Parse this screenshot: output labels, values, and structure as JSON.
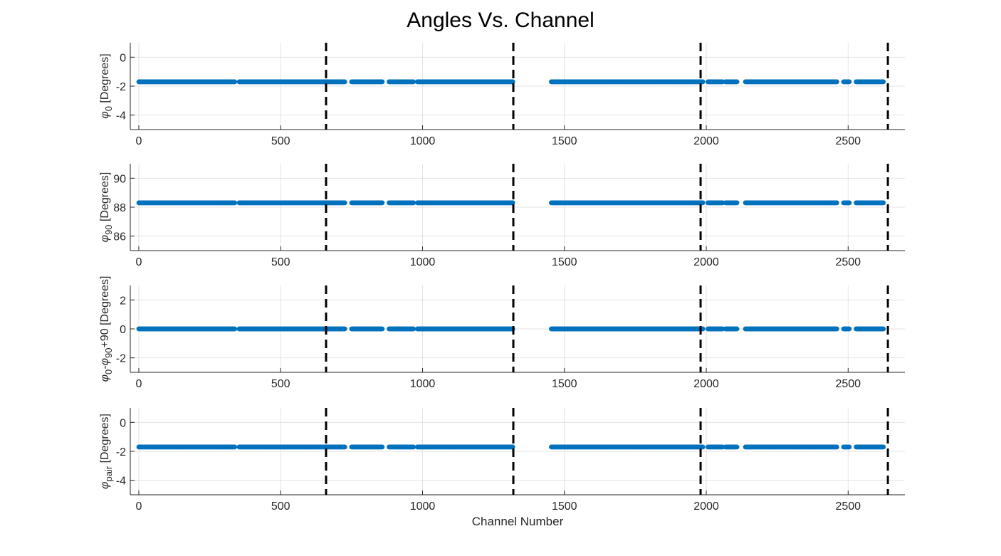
{
  "title": "Angles Vs. Channel",
  "chart_data": {
    "type": "scatter",
    "title": "Angles Vs. Channel",
    "xlabel": "Channel Number",
    "marker_color": "#0072BD",
    "vline_color": "#000000",
    "x_range": [
      0,
      2624
    ],
    "gaps": [
      [
        340,
        352
      ],
      [
        728,
        748
      ],
      [
        860,
        880
      ],
      [
        970,
        980
      ],
      [
        1320,
        1452
      ],
      [
        1990,
        2004
      ],
      [
        2060,
        2066
      ],
      [
        2110,
        2136
      ],
      [
        2462,
        2482
      ],
      [
        2506,
        2526
      ]
    ],
    "vlines": [
      660,
      1320,
      1980,
      2640
    ],
    "grid": true,
    "subplots": [
      {
        "ylabel": "φ₀ [Degrees]",
        "ylabel_main": "φ",
        "ylabel_sub": "0",
        "ylabel_rest": " [Degrees]",
        "xlim": [
          -30,
          2700
        ],
        "ylim": [
          -5,
          1
        ],
        "xticks": [
          0,
          500,
          1000,
          1500,
          2000,
          2500
        ],
        "xtick_labels": [
          "0",
          "500",
          "1000",
          "1500",
          "2000",
          "2500"
        ],
        "yticks": [
          0,
          -2,
          -4
        ],
        "ytick_labels": [
          "0",
          "-2",
          "-4"
        ],
        "y_value": -1.7
      },
      {
        "ylabel": "φ₉₀ [Degrees]",
        "ylabel_main": "φ",
        "ylabel_sub": "90",
        "ylabel_rest": " [Degrees]",
        "xlim": [
          -30,
          2700
        ],
        "ylim": [
          85,
          91
        ],
        "xticks": [
          0,
          500,
          1000,
          1500,
          2000,
          2500
        ],
        "xtick_labels": [
          "0",
          "500",
          "1000",
          "1500",
          "2000",
          "2500"
        ],
        "yticks": [
          90,
          88,
          86
        ],
        "ytick_labels": [
          "90",
          "88",
          "86"
        ],
        "y_value": 88.3
      },
      {
        "ylabel": "φ₀-φ₉₀+90 [Degrees]",
        "ylabel_main": "φ",
        "ylabel_sub": "0",
        "ylabel_mid": "-φ",
        "ylabel_sub2": "90",
        "ylabel_rest": "+90 [Degrees]",
        "xlim": [
          -30,
          2700
        ],
        "ylim": [
          -3,
          3
        ],
        "xticks": [
          0,
          500,
          1000,
          1500,
          2000,
          2500
        ],
        "xtick_labels": [
          "0",
          "500",
          "1000",
          "1500",
          "2000",
          "2500"
        ],
        "yticks": [
          2,
          0,
          -2
        ],
        "ytick_labels": [
          "2",
          "0",
          "-2"
        ],
        "y_value": 0
      },
      {
        "ylabel": "φpair [Degrees]",
        "ylabel_main": "φ",
        "ylabel_sub": "pair",
        "ylabel_rest": " [Degrees]",
        "xlim": [
          -30,
          2700
        ],
        "ylim": [
          -5,
          1
        ],
        "xticks": [
          0,
          500,
          1000,
          1500,
          2000,
          2500
        ],
        "xtick_labels": [
          "0",
          "500",
          "1000",
          "1500",
          "2000",
          "2500"
        ],
        "yticks": [
          0,
          -2,
          -4
        ],
        "ytick_labels": [
          "0",
          "-2",
          "-4"
        ],
        "y_value": -1.7
      }
    ]
  }
}
